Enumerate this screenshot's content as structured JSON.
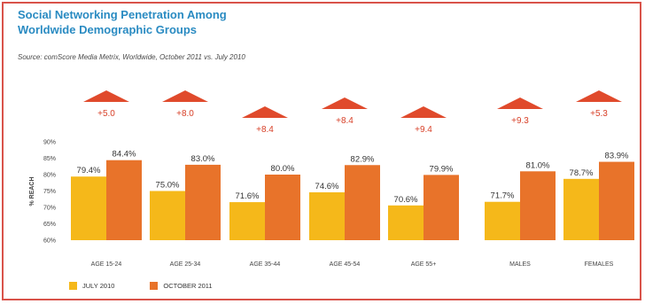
{
  "title": "Social Networking Penetration Among\nWorldwide Demographic Groups",
  "source": "Source: comScore Media Metrix, Worldwide, October 2011 vs. July 2010",
  "colors": {
    "series_a": "#f5b81a",
    "series_b": "#e8732a",
    "arrow": "#e04a2c",
    "change_text": "#d8422a",
    "frame": "#d9534a",
    "title": "#2a8bc2"
  },
  "chart_data": {
    "type": "bar",
    "categories": [
      "AGE 15-24",
      "AGE 25-34",
      "AGE 35-44",
      "AGE 45-54",
      "AGE 55+",
      "MALES",
      "FEMALES"
    ],
    "series": [
      {
        "name": "JULY 2010",
        "values": [
          79.4,
          75.0,
          71.6,
          74.6,
          70.6,
          71.7,
          78.7
        ],
        "labels": [
          "79.4%",
          "75.0%",
          "71.6%",
          "74.6%",
          "70.6%",
          "71.7%",
          "78.7%"
        ]
      },
      {
        "name": "OCTOBER 2011",
        "values": [
          84.4,
          83.0,
          80.0,
          82.9,
          79.9,
          81.0,
          83.9
        ],
        "labels": [
          "84.4%",
          "83.0%",
          "80.0%",
          "82.9%",
          "79.9%",
          "81.0%",
          "83.9%"
        ]
      }
    ],
    "changes": [
      "+5.0",
      "+8.0",
      "+8.4",
      "+8.4",
      "+9.4",
      "+9.3",
      "+5.3"
    ],
    "ylabel": "% REACH",
    "ylim": [
      60,
      90
    ],
    "yticks": [
      "60%",
      "65%",
      "70%",
      "75%",
      "80%",
      "85%",
      "90%"
    ],
    "legend_position": "bottom-left",
    "grid": false
  }
}
